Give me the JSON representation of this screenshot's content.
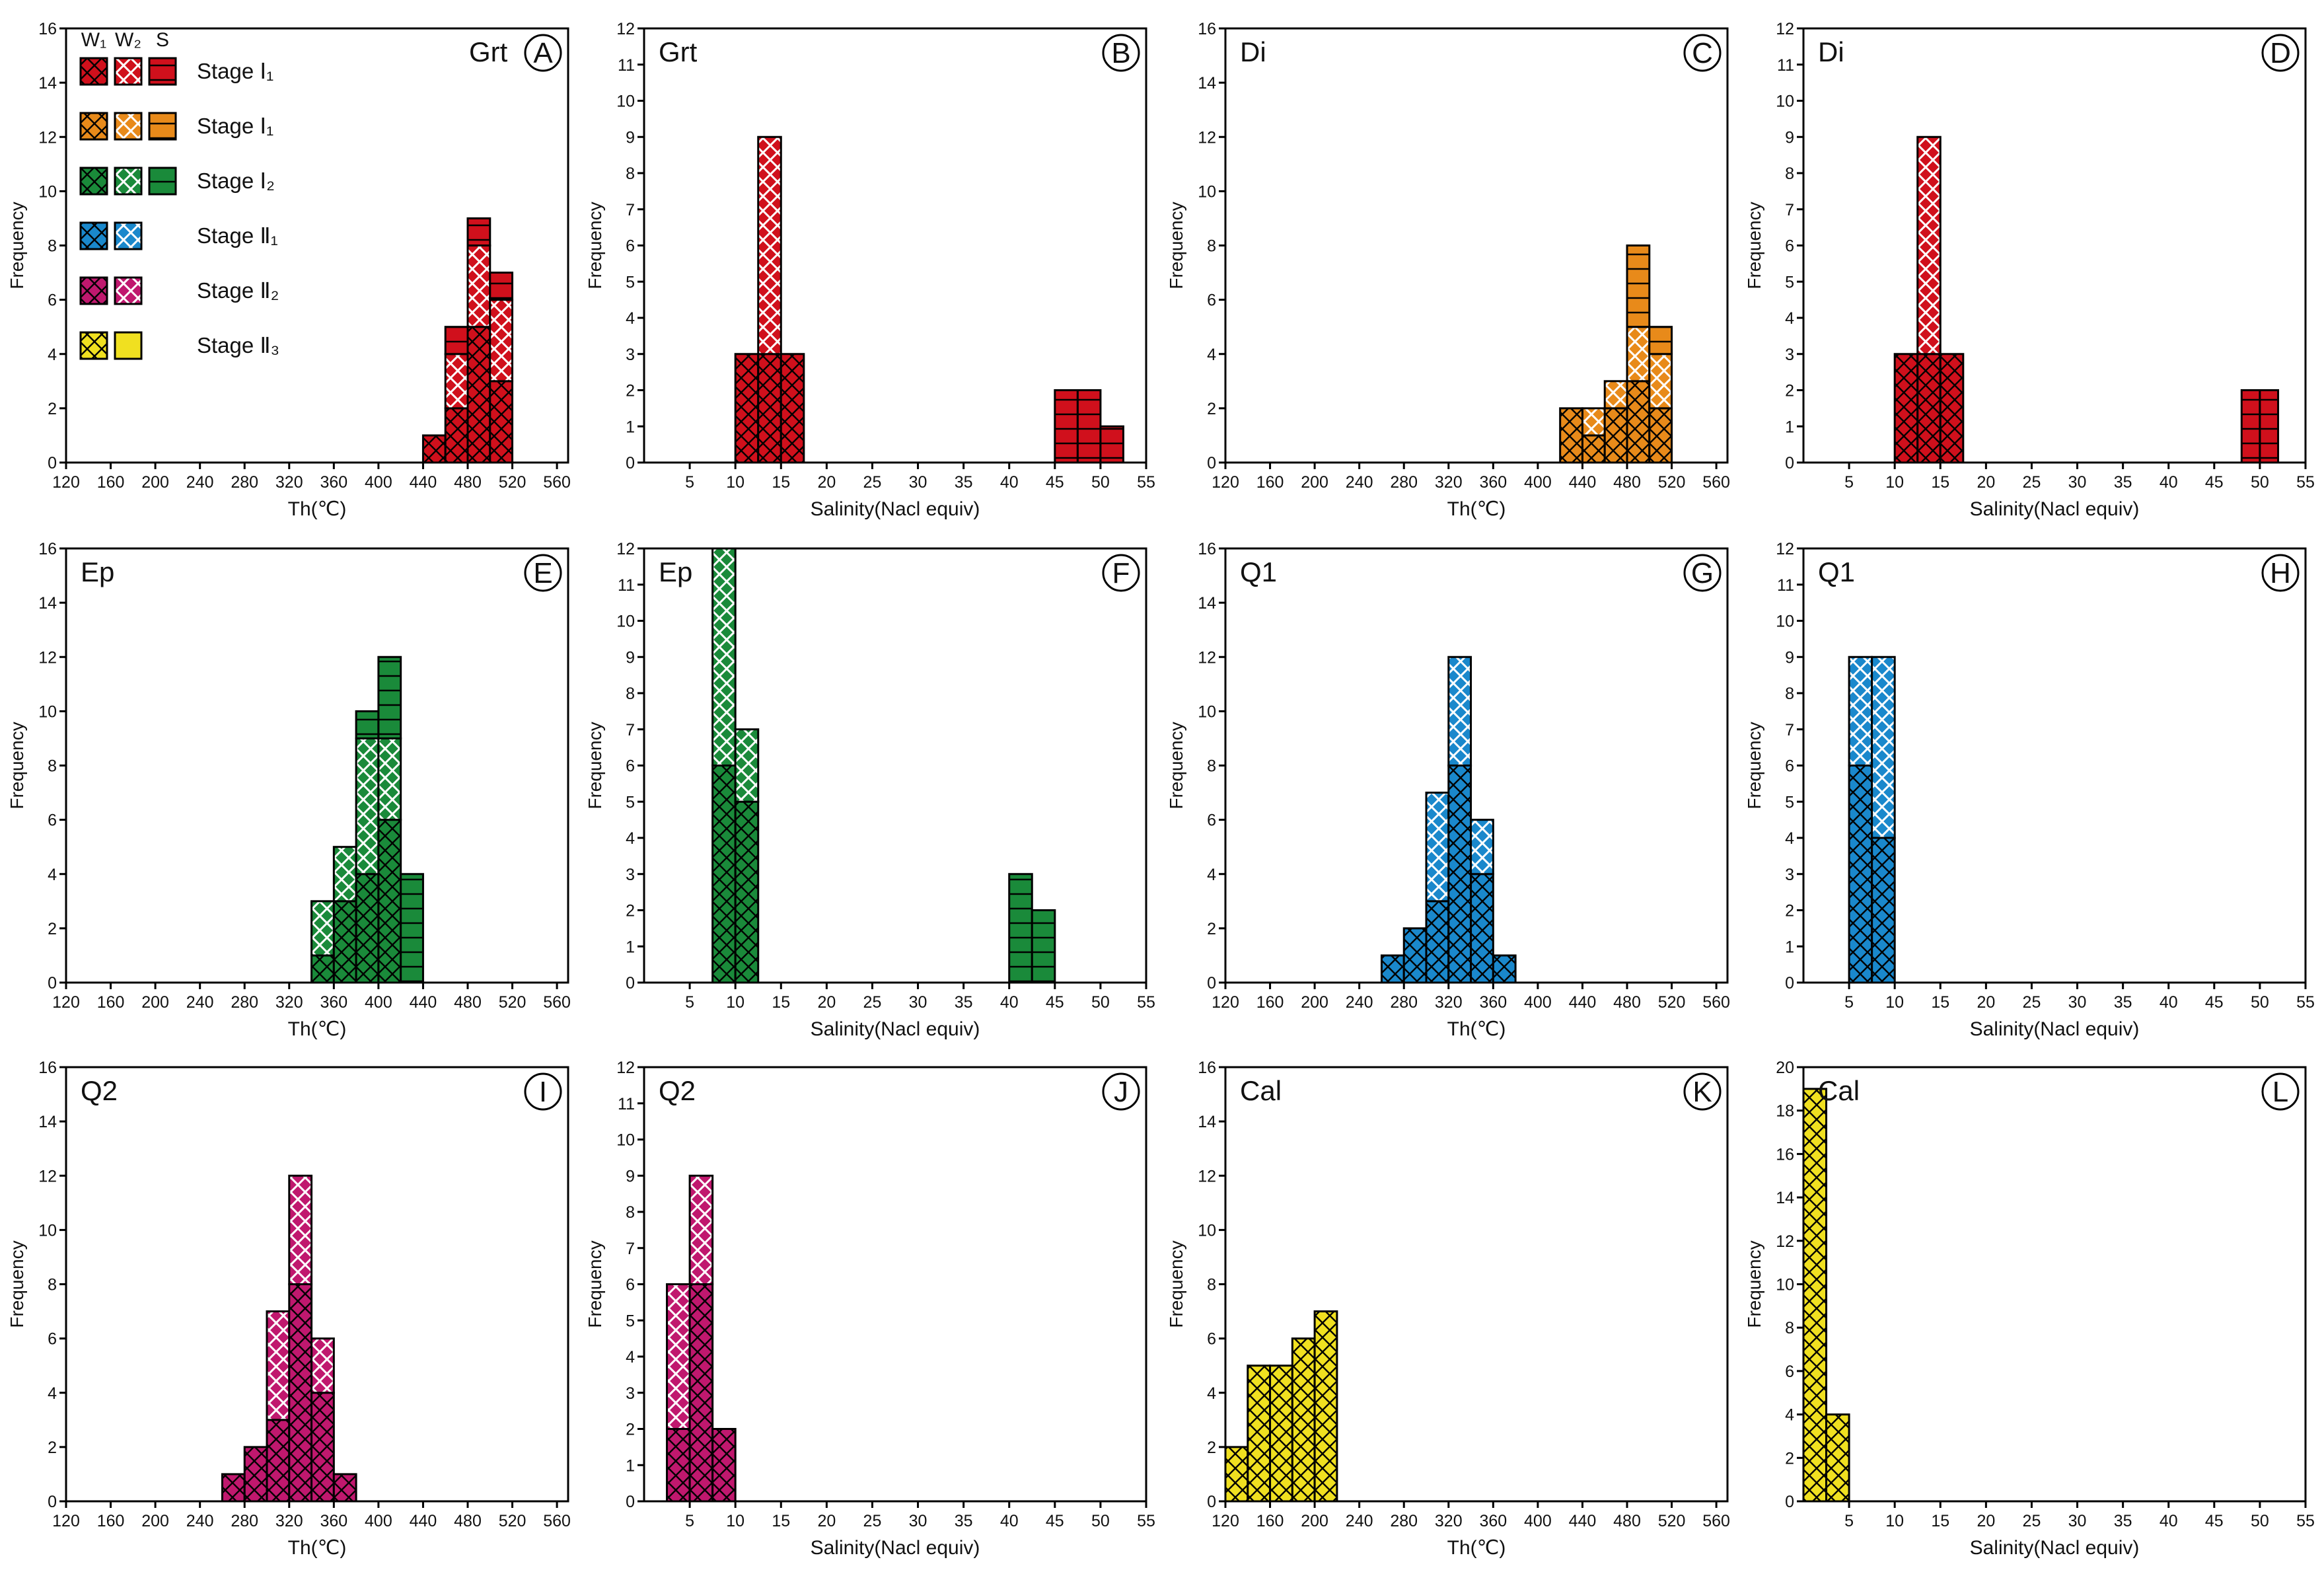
{
  "colors": {
    "I1_garnet": "#d0101c",
    "I1_diopside": "#e88a1a",
    "I2": "#1a8a3a",
    "II1": "#1a88cc",
    "II2": "#c0186e",
    "II3": "#f0e020"
  },
  "legend": {
    "headers": [
      "W₁",
      "W₂",
      "S"
    ],
    "rows": [
      {
        "label": "Stage Ⅰ₁",
        "color_key": "I1_garnet",
        "patterns": [
          "W1",
          "W2",
          "S"
        ]
      },
      {
        "label": "Stage Ⅰ₁",
        "color_key": "I1_diopside",
        "patterns": [
          "W1",
          "W2",
          "S"
        ]
      },
      {
        "label": "Stage Ⅰ₂",
        "color_key": "I2",
        "patterns": [
          "W1",
          "W2",
          "S"
        ]
      },
      {
        "label": "Stage Ⅱ₁",
        "color_key": "II1",
        "patterns": [
          "W1",
          "W2"
        ]
      },
      {
        "label": "Stage Ⅱ₂",
        "color_key": "II2",
        "patterns": [
          "W1",
          "W2"
        ]
      },
      {
        "label": "Stage Ⅱ₃",
        "color_key": "II3",
        "patterns": [
          "W1",
          "plain"
        ]
      }
    ]
  },
  "chart_data": [
    {
      "id": "A",
      "mineral": "Grt",
      "type": "bar",
      "xlabel": "Th(℃)",
      "ylabel": "Frequency",
      "xlim": [
        120,
        570
      ],
      "ylim": [
        0,
        16
      ],
      "xticks": [
        120,
        160,
        200,
        240,
        280,
        320,
        360,
        400,
        440,
        480,
        520,
        560
      ],
      "yticks": [
        0,
        2,
        4,
        6,
        8,
        10,
        12,
        14,
        16
      ],
      "color_key": "I1_garnet",
      "bins": [
        {
          "x0": 440,
          "x1": 460,
          "stack": [
            {
              "p": "W1",
              "v": 1
            }
          ]
        },
        {
          "x0": 460,
          "x1": 480,
          "stack": [
            {
              "p": "W1",
              "v": 2
            },
            {
              "p": "W2",
              "v": 2
            },
            {
              "p": "S",
              "v": 1
            }
          ]
        },
        {
          "x0": 480,
          "x1": 500,
          "stack": [
            {
              "p": "W1",
              "v": 5
            },
            {
              "p": "W2",
              "v": 3
            },
            {
              "p": "S",
              "v": 1
            }
          ]
        },
        {
          "x0": 500,
          "x1": 520,
          "stack": [
            {
              "p": "W1",
              "v": 3
            },
            {
              "p": "W2",
              "v": 3
            },
            {
              "p": "S",
              "v": 1
            }
          ]
        }
      ]
    },
    {
      "id": "B",
      "mineral": "Grt",
      "type": "bar",
      "xlabel": "Salinity(Nacl equiv)",
      "ylabel": "Frequency",
      "xlim": [
        0,
        55
      ],
      "ylim": [
        0,
        12
      ],
      "xticks": [
        5,
        10,
        15,
        20,
        25,
        30,
        35,
        40,
        45,
        50,
        55
      ],
      "yticks": [
        0,
        1,
        2,
        3,
        4,
        5,
        6,
        7,
        8,
        9,
        10,
        11,
        12
      ],
      "color_key": "I1_garnet",
      "bins": [
        {
          "x0": 10,
          "x1": 12.5,
          "stack": [
            {
              "p": "W1",
              "v": 3
            }
          ]
        },
        {
          "x0": 12.5,
          "x1": 15,
          "stack": [
            {
              "p": "W1",
              "v": 3
            },
            {
              "p": "W2",
              "v": 6
            }
          ]
        },
        {
          "x0": 15,
          "x1": 17.5,
          "stack": [
            {
              "p": "W1",
              "v": 3
            }
          ]
        },
        {
          "x0": 45,
          "x1": 47.5,
          "stack": [
            {
              "p": "S",
              "v": 2
            }
          ]
        },
        {
          "x0": 47.5,
          "x1": 50,
          "stack": [
            {
              "p": "S",
              "v": 2
            }
          ]
        },
        {
          "x0": 50,
          "x1": 52.5,
          "stack": [
            {
              "p": "S",
              "v": 1
            }
          ]
        }
      ]
    },
    {
      "id": "C",
      "mineral": "Di",
      "type": "bar",
      "xlabel": "Th(℃)",
      "ylabel": "Frequency",
      "xlim": [
        120,
        570
      ],
      "ylim": [
        0,
        16
      ],
      "xticks": [
        120,
        160,
        200,
        240,
        280,
        320,
        360,
        400,
        440,
        480,
        520,
        560
      ],
      "yticks": [
        0,
        2,
        4,
        6,
        8,
        10,
        12,
        14,
        16
      ],
      "color_key": "I1_diopside",
      "bins": [
        {
          "x0": 420,
          "x1": 440,
          "stack": [
            {
              "p": "W1",
              "v": 2
            }
          ]
        },
        {
          "x0": 440,
          "x1": 460,
          "stack": [
            {
              "p": "W1",
              "v": 1
            },
            {
              "p": "W2",
              "v": 1
            }
          ]
        },
        {
          "x0": 460,
          "x1": 480,
          "stack": [
            {
              "p": "W1",
              "v": 2
            },
            {
              "p": "W2",
              "v": 1
            }
          ]
        },
        {
          "x0": 480,
          "x1": 500,
          "stack": [
            {
              "p": "W1",
              "v": 3
            },
            {
              "p": "W2",
              "v": 2
            },
            {
              "p": "S",
              "v": 3
            }
          ]
        },
        {
          "x0": 500,
          "x1": 520,
          "stack": [
            {
              "p": "W1",
              "v": 2
            },
            {
              "p": "W2",
              "v": 2
            },
            {
              "p": "S",
              "v": 1
            }
          ]
        }
      ]
    },
    {
      "id": "D",
      "mineral": "Di",
      "type": "bar",
      "xlabel": "Salinity(Nacl equiv)",
      "ylabel": "Frequency",
      "xlim": [
        0,
        55
      ],
      "ylim": [
        0,
        12
      ],
      "xticks": [
        5,
        10,
        15,
        20,
        25,
        30,
        35,
        40,
        45,
        50,
        55
      ],
      "yticks": [
        0,
        1,
        2,
        3,
        4,
        5,
        6,
        7,
        8,
        9,
        10,
        11,
        12
      ],
      "color_key": "I1_garnet",
      "bins": [
        {
          "x0": 10,
          "x1": 12.5,
          "stack": [
            {
              "p": "W1",
              "v": 3
            }
          ]
        },
        {
          "x0": 12.5,
          "x1": 15,
          "stack": [
            {
              "p": "W1",
              "v": 3
            },
            {
              "p": "W2",
              "v": 6
            }
          ]
        },
        {
          "x0": 15,
          "x1": 17.5,
          "stack": [
            {
              "p": "W1",
              "v": 3
            }
          ]
        },
        {
          "x0": 48,
          "x1": 50,
          "stack": [
            {
              "p": "S",
              "v": 2
            }
          ]
        },
        {
          "x0": 50,
          "x1": 52,
          "stack": [
            {
              "p": "S",
              "v": 2
            }
          ]
        }
      ]
    },
    {
      "id": "E",
      "mineral": "Ep",
      "type": "bar",
      "xlabel": "Th(℃)",
      "ylabel": "Frequency",
      "xlim": [
        120,
        570
      ],
      "ylim": [
        0,
        16
      ],
      "xticks": [
        120,
        160,
        200,
        240,
        280,
        320,
        360,
        400,
        440,
        480,
        520,
        560
      ],
      "yticks": [
        0,
        2,
        4,
        6,
        8,
        10,
        12,
        14,
        16
      ],
      "color_key": "I2",
      "bins": [
        {
          "x0": 340,
          "x1": 360,
          "stack": [
            {
              "p": "W1",
              "v": 1
            },
            {
              "p": "W2",
              "v": 2
            }
          ]
        },
        {
          "x0": 360,
          "x1": 380,
          "stack": [
            {
              "p": "W1",
              "v": 3
            },
            {
              "p": "W2",
              "v": 2
            }
          ]
        },
        {
          "x0": 380,
          "x1": 400,
          "stack": [
            {
              "p": "W1",
              "v": 4
            },
            {
              "p": "W2",
              "v": 5
            },
            {
              "p": "S",
              "v": 1
            }
          ]
        },
        {
          "x0": 400,
          "x1": 420,
          "stack": [
            {
              "p": "W1",
              "v": 6
            },
            {
              "p": "W2",
              "v": 3
            },
            {
              "p": "S",
              "v": 3
            }
          ]
        },
        {
          "x0": 420,
          "x1": 440,
          "stack": [
            {
              "p": "S",
              "v": 4
            }
          ]
        }
      ]
    },
    {
      "id": "F",
      "mineral": "Ep",
      "type": "bar",
      "xlabel": "Salinity(Nacl equiv)",
      "ylabel": "Frequency",
      "xlim": [
        0,
        55
      ],
      "ylim": [
        0,
        12
      ],
      "xticks": [
        5,
        10,
        15,
        20,
        25,
        30,
        35,
        40,
        45,
        50,
        55
      ],
      "yticks": [
        0,
        1,
        2,
        3,
        4,
        5,
        6,
        7,
        8,
        9,
        10,
        11,
        12
      ],
      "color_key": "I2",
      "bins": [
        {
          "x0": 7.5,
          "x1": 10,
          "stack": [
            {
              "p": "W1",
              "v": 6
            },
            {
              "p": "W2",
              "v": 6
            }
          ]
        },
        {
          "x0": 10,
          "x1": 12.5,
          "stack": [
            {
              "p": "W1",
              "v": 5
            },
            {
              "p": "W2",
              "v": 2
            }
          ]
        },
        {
          "x0": 40,
          "x1": 42.5,
          "stack": [
            {
              "p": "S",
              "v": 3
            }
          ]
        },
        {
          "x0": 42.5,
          "x1": 45,
          "stack": [
            {
              "p": "S",
              "v": 2
            }
          ]
        }
      ]
    },
    {
      "id": "G",
      "mineral": "Q1",
      "type": "bar",
      "xlabel": "Th(℃)",
      "ylabel": "Frequency",
      "xlim": [
        120,
        570
      ],
      "ylim": [
        0,
        16
      ],
      "xticks": [
        120,
        160,
        200,
        240,
        280,
        320,
        360,
        400,
        440,
        480,
        520,
        560
      ],
      "yticks": [
        0,
        2,
        4,
        6,
        8,
        10,
        12,
        14,
        16
      ],
      "color_key": "II1",
      "bins": [
        {
          "x0": 260,
          "x1": 280,
          "stack": [
            {
              "p": "W1",
              "v": 1
            }
          ]
        },
        {
          "x0": 280,
          "x1": 300,
          "stack": [
            {
              "p": "W1",
              "v": 2
            }
          ]
        },
        {
          "x0": 300,
          "x1": 320,
          "stack": [
            {
              "p": "W1",
              "v": 3
            },
            {
              "p": "W2",
              "v": 4
            }
          ]
        },
        {
          "x0": 320,
          "x1": 340,
          "stack": [
            {
              "p": "W1",
              "v": 8
            },
            {
              "p": "W2",
              "v": 4
            }
          ]
        },
        {
          "x0": 340,
          "x1": 360,
          "stack": [
            {
              "p": "W1",
              "v": 4
            },
            {
              "p": "W2",
              "v": 2
            }
          ]
        },
        {
          "x0": 360,
          "x1": 380,
          "stack": [
            {
              "p": "W1",
              "v": 1
            }
          ]
        }
      ]
    },
    {
      "id": "H",
      "mineral": "Q1",
      "type": "bar",
      "xlabel": "Salinity(Nacl equiv)",
      "ylabel": "Frequency",
      "xlim": [
        0,
        55
      ],
      "ylim": [
        0,
        12
      ],
      "xticks": [
        5,
        10,
        15,
        20,
        25,
        30,
        35,
        40,
        45,
        50,
        55
      ],
      "yticks": [
        0,
        1,
        2,
        3,
        4,
        5,
        6,
        7,
        8,
        9,
        10,
        11,
        12
      ],
      "color_key": "II1",
      "bins": [
        {
          "x0": 5,
          "x1": 7.5,
          "stack": [
            {
              "p": "W1",
              "v": 6
            },
            {
              "p": "W2",
              "v": 3
            }
          ]
        },
        {
          "x0": 7.5,
          "x1": 10,
          "stack": [
            {
              "p": "W1",
              "v": 4
            },
            {
              "p": "W2",
              "v": 5
            }
          ]
        }
      ]
    },
    {
      "id": "I",
      "mineral": "Q2",
      "type": "bar",
      "xlabel": "Th(℃)",
      "ylabel": "Frequency",
      "xlim": [
        120,
        570
      ],
      "ylim": [
        0,
        16
      ],
      "xticks": [
        120,
        160,
        200,
        240,
        280,
        320,
        360,
        400,
        440,
        480,
        520,
        560
      ],
      "yticks": [
        0,
        2,
        4,
        6,
        8,
        10,
        12,
        14,
        16
      ],
      "color_key": "II2",
      "bins": [
        {
          "x0": 260,
          "x1": 280,
          "stack": [
            {
              "p": "W1",
              "v": 1
            }
          ]
        },
        {
          "x0": 280,
          "x1": 300,
          "stack": [
            {
              "p": "W1",
              "v": 2
            }
          ]
        },
        {
          "x0": 300,
          "x1": 320,
          "stack": [
            {
              "p": "W1",
              "v": 3
            },
            {
              "p": "W2",
              "v": 4
            }
          ]
        },
        {
          "x0": 320,
          "x1": 340,
          "stack": [
            {
              "p": "W1",
              "v": 8
            },
            {
              "p": "W2",
              "v": 4
            }
          ]
        },
        {
          "x0": 340,
          "x1": 360,
          "stack": [
            {
              "p": "W1",
              "v": 4
            },
            {
              "p": "W2",
              "v": 2
            }
          ]
        },
        {
          "x0": 360,
          "x1": 380,
          "stack": [
            {
              "p": "W1",
              "v": 1
            }
          ]
        }
      ]
    },
    {
      "id": "J",
      "mineral": "Q2",
      "type": "bar",
      "xlabel": "Salinity(Nacl equiv)",
      "ylabel": "Frequency",
      "xlim": [
        0,
        55
      ],
      "ylim": [
        0,
        12
      ],
      "xticks": [
        5,
        10,
        15,
        20,
        25,
        30,
        35,
        40,
        45,
        50,
        55
      ],
      "yticks": [
        0,
        1,
        2,
        3,
        4,
        5,
        6,
        7,
        8,
        9,
        10,
        11,
        12
      ],
      "color_key": "II2",
      "bins": [
        {
          "x0": 2.5,
          "x1": 5,
          "stack": [
            {
              "p": "W1",
              "v": 2
            },
            {
              "p": "W2",
              "v": 4
            }
          ]
        },
        {
          "x0": 5,
          "x1": 7.5,
          "stack": [
            {
              "p": "W1",
              "v": 6
            },
            {
              "p": "W2",
              "v": 3
            }
          ]
        },
        {
          "x0": 7.5,
          "x1": 10,
          "stack": [
            {
              "p": "W1",
              "v": 2
            }
          ]
        }
      ]
    },
    {
      "id": "K",
      "mineral": "Cal",
      "type": "bar",
      "xlabel": "Th(℃)",
      "ylabel": "Frequency",
      "xlim": [
        120,
        570
      ],
      "ylim": [
        0,
        16
      ],
      "xticks": [
        120,
        160,
        200,
        240,
        280,
        320,
        360,
        400,
        440,
        480,
        520,
        560
      ],
      "yticks": [
        0,
        2,
        4,
        6,
        8,
        10,
        12,
        14,
        16
      ],
      "color_key": "II3",
      "bins": [
        {
          "x0": 120,
          "x1": 140,
          "stack": [
            {
              "p": "W1",
              "v": 2
            }
          ]
        },
        {
          "x0": 140,
          "x1": 160,
          "stack": [
            {
              "p": "W1",
              "v": 5
            }
          ]
        },
        {
          "x0": 160,
          "x1": 180,
          "stack": [
            {
              "p": "W1",
              "v": 5
            }
          ]
        },
        {
          "x0": 180,
          "x1": 200,
          "stack": [
            {
              "p": "W1",
              "v": 6
            }
          ]
        },
        {
          "x0": 200,
          "x1": 220,
          "stack": [
            {
              "p": "W1",
              "v": 7
            }
          ]
        }
      ]
    },
    {
      "id": "L",
      "mineral": "Cal",
      "type": "bar",
      "xlabel": "Salinity(Nacl equiv)",
      "ylabel": "Frequency",
      "xlim": [
        0,
        55
      ],
      "ylim": [
        0,
        20
      ],
      "xticks": [
        5,
        10,
        15,
        20,
        25,
        30,
        35,
        40,
        45,
        50,
        55
      ],
      "yticks": [
        0,
        2,
        4,
        6,
        8,
        10,
        12,
        14,
        16,
        18,
        20
      ],
      "color_key": "II3",
      "bins": [
        {
          "x0": 0,
          "x1": 2.5,
          "stack": [
            {
              "p": "W1",
              "v": 19
            }
          ]
        },
        {
          "x0": 2.5,
          "x1": 5,
          "stack": [
            {
              "p": "W1",
              "v": 4
            }
          ]
        }
      ]
    }
  ]
}
